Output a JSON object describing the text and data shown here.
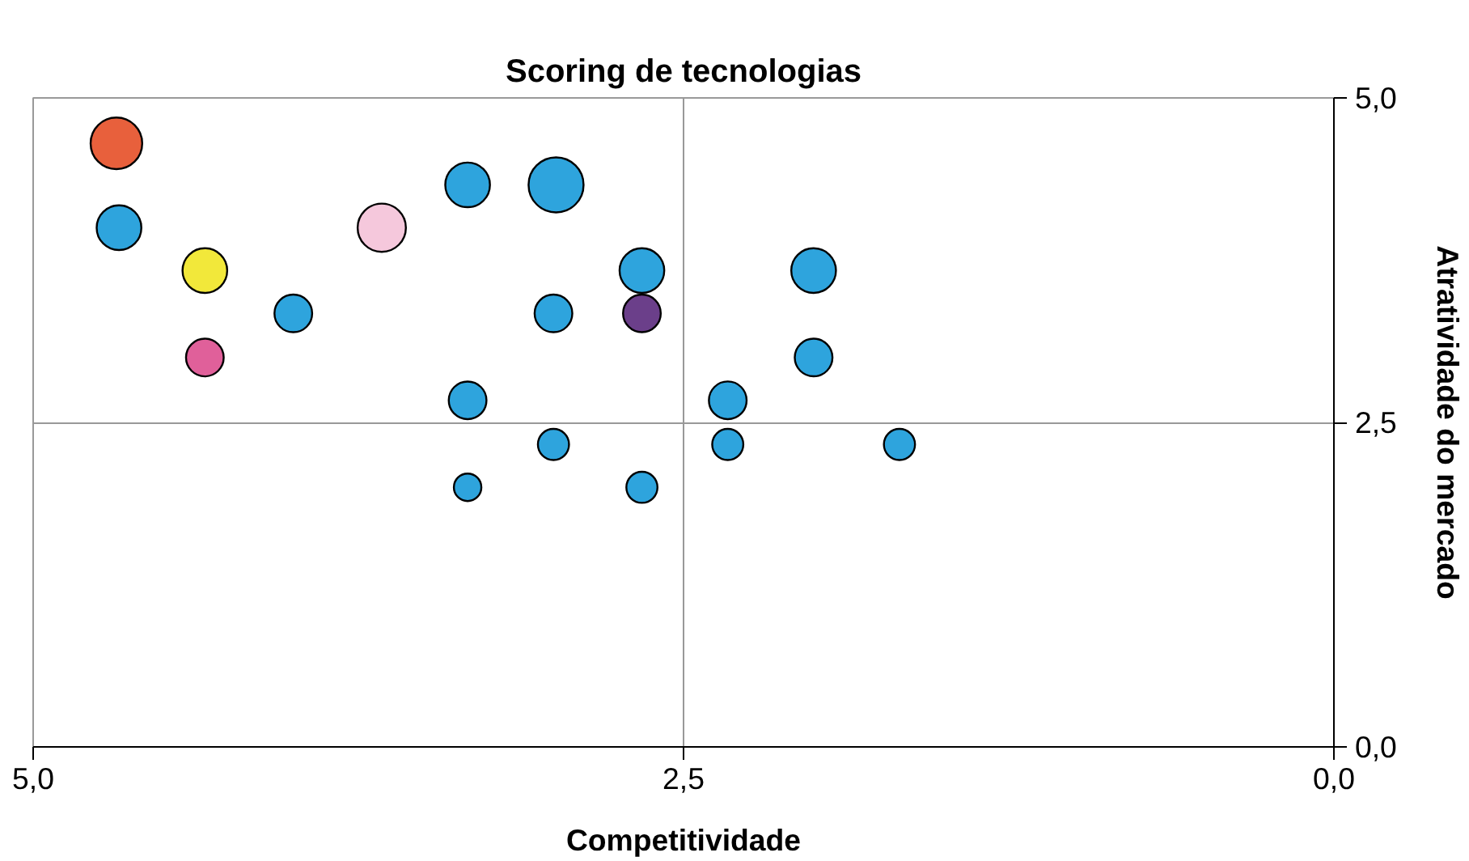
{
  "chart_data": {
    "type": "bubble",
    "title": "Scoring de tecnologias",
    "xlabel": "Competitividade",
    "ylabel": "Atratividade do mercado",
    "x": [
      4.68,
      4.67,
      4.34,
      4.34,
      4.0,
      3.66,
      3.33,
      3.33,
      3.33,
      2.99,
      3.0,
      3.0,
      2.66,
      2.66,
      2.66,
      2.33,
      2.33,
      2.0,
      2.0,
      1.67
    ],
    "values": [
      4.65,
      4.0,
      3.67,
      3.0,
      3.34,
      4.0,
      4.33,
      2.67,
      2.0,
      4.33,
      3.34,
      2.33,
      3.67,
      3.34,
      2.0,
      2.67,
      2.33,
      3.67,
      3.0,
      2.33
    ],
    "sizes": [
      0.88,
      0.66,
      0.66,
      0.47,
      0.47,
      0.77,
      0.66,
      0.47,
      0.25,
      1,
      0.47,
      0.32,
      0.66,
      0.47,
      0.32,
      0.47,
      0.32,
      0.66,
      0.47,
      0.32
    ],
    "colors": [
      "#e8603c",
      "#2ea4dd",
      "#f2e83a",
      "#e0609a",
      "#2ea4dd",
      "#f5c8dc",
      "#2ea4dd",
      "#2ea4dd",
      "#2ea4dd",
      "#2ea4dd",
      "#2ea4dd",
      "#2ea4dd",
      "#2ea4dd",
      "#6b3f8a",
      "#2ea4dd",
      "#2ea4dd",
      "#2ea4dd",
      "#2ea4dd",
      "#2ea4dd",
      "#2ea4dd"
    ],
    "xlim": [
      5,
      0
    ],
    "ylim": [
      0,
      5
    ],
    "xticks": [
      {
        "value": 5,
        "label": "5,0"
      },
      {
        "value": 2.5,
        "label": "2,5"
      },
      {
        "value": 0,
        "label": "0,0"
      }
    ],
    "yticks": [
      {
        "value": 0,
        "label": "0,0"
      },
      {
        "value": 2.5,
        "label": "2,5"
      },
      {
        "value": 5,
        "label": "5,0"
      }
    ],
    "grid": true
  }
}
